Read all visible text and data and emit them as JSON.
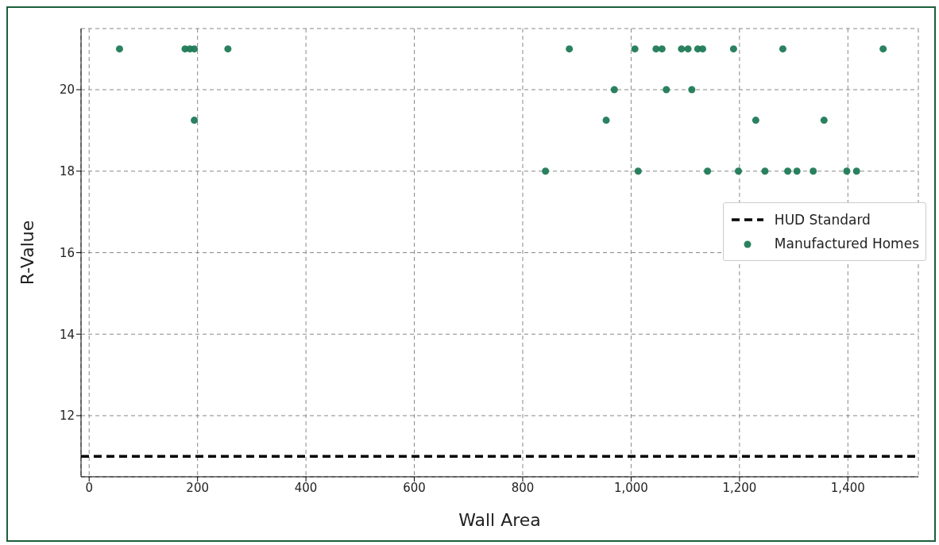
{
  "chart_data": {
    "type": "scatter",
    "xlabel": "Wall Area",
    "ylabel": "R-Value",
    "xlim": [
      -15,
      1530
    ],
    "ylim": [
      10.5,
      21.5
    ],
    "xticks": [
      0,
      200,
      400,
      600,
      800,
      {
        "value": 1000,
        "label": "1,000"
      },
      {
        "value": 1200,
        "label": "1,200"
      },
      {
        "value": 1400,
        "label": "1,400"
      }
    ],
    "yticks": [
      12,
      14,
      16,
      18,
      20
    ],
    "grid": true,
    "legend": "right",
    "marker": "circle",
    "ref_lines": [
      {
        "axis": "y",
        "value": 11,
        "label": "HUD Standard",
        "color": "#000000",
        "line_style": "dashed"
      }
    ],
    "series": [
      {
        "name": "Manufactured Homes",
        "color": "#1f7a56",
        "x": [
          56,
          177,
          186,
          194,
          194,
          256,
          842,
          886,
          954,
          969,
          1007,
          1013,
          1046,
          1057,
          1065,
          1093,
          1105,
          1112,
          1123,
          1132,
          1141,
          1189,
          1198,
          1230,
          1247,
          1280,
          1289,
          1306,
          1336,
          1356,
          1398,
          1416,
          1465
        ],
        "values": [
          21,
          21,
          21,
          21,
          19.25,
          21,
          18,
          21,
          19.25,
          20,
          21,
          18,
          21,
          21,
          20,
          21,
          21,
          20,
          21,
          21,
          18,
          21,
          18,
          19.25,
          18,
          21,
          18,
          18,
          18,
          19.25,
          18,
          18,
          21
        ]
      }
    ]
  }
}
